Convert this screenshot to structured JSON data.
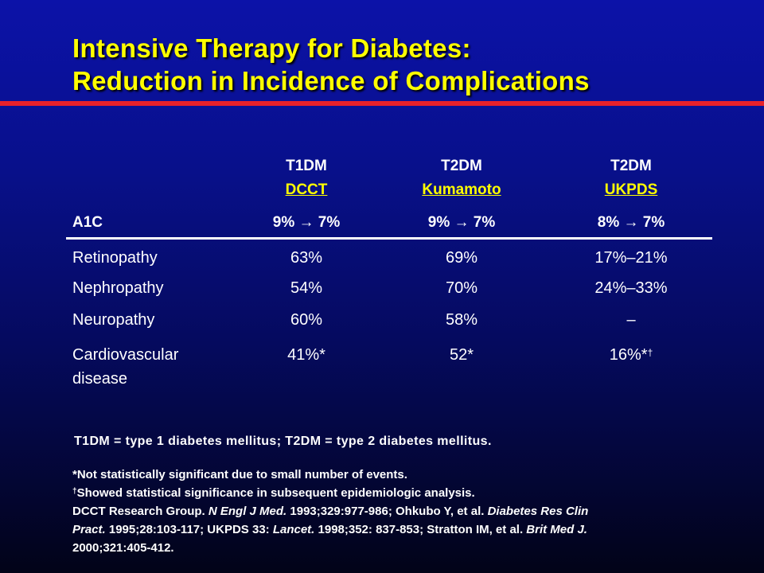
{
  "title": {
    "line1": "Intensive Therapy for Diabetes:",
    "line2": "Reduction in Incidence of Complications"
  },
  "table": {
    "columns": [
      {
        "type": "T1DM",
        "study": "DCCT",
        "a1c": "9% → 7%"
      },
      {
        "type": "T2DM",
        "study": "Kumamoto",
        "a1c": "9% → 7%"
      },
      {
        "type": "T2DM",
        "study": "UKPDS",
        "a1c": "8% → 7%"
      }
    ],
    "a1c_label": "A1C",
    "rows": [
      {
        "label": "Retinopathy",
        "values": [
          "63%",
          "69%",
          "17%–21%"
        ]
      },
      {
        "label": "Nephropathy",
        "values": [
          "54%",
          "70%",
          "24%–33%"
        ]
      },
      {
        "label": "Neuropathy",
        "values": [
          "60%",
          "58%",
          "–"
        ]
      },
      {
        "label": "Cardiovascular disease",
        "values": [
          "41%*",
          "52*",
          "16%*"
        ],
        "last_sup": "†"
      }
    ]
  },
  "abbreviations": "T1DM = type 1 diabetes mellitus; T2DM = type 2 diabetes mellitus.",
  "footnotes": {
    "note1": "*Not statistically significant due to small number of events.",
    "note2_mark": "†",
    "note2": "Showed statistical significance in subsequent epidemiologic analysis.",
    "ref1_a": "DCCT Research Group. ",
    "ref1_journal": "N Engl J Med.",
    "ref1_b": " 1993;329:977-986; Ohkubo Y, et al. ",
    "ref1_journal2": "Diabetes Res Clin",
    "ref2_journal": "Pract.",
    "ref2_a": " 1995;28:103-117; UKPDS 33: ",
    "ref2_journal2": "Lancet.",
    "ref2_b": " 1998;352: 837-853; Stratton IM, et al. ",
    "ref2_journal3": "Brit Med J.",
    "ref3": "2000;321:405-412."
  },
  "colors": {
    "title": "#ffff00",
    "rule": "#e8212a",
    "study_link": "#ffff00"
  }
}
